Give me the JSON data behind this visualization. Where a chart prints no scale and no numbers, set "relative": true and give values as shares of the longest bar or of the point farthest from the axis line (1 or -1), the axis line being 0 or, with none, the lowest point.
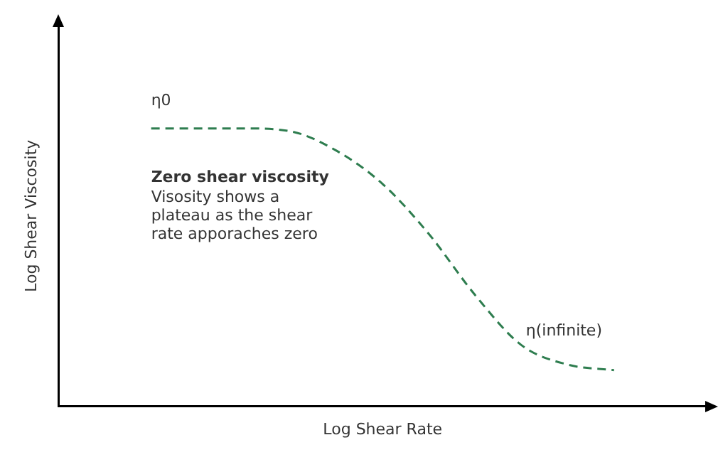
{
  "chart_data": {
    "type": "line",
    "relative": true,
    "xlabel": "Log Shear Rate",
    "ylabel": "Log Shear Viscosity",
    "categories": [
      null,
      null,
      null,
      null,
      null,
      null,
      null,
      null,
      null,
      null,
      null,
      null,
      null,
      null,
      null
    ],
    "series": [
      {
        "color": "#2e7d4f",
        "values": [
          null,
          null,
          1,
          1,
          1,
          0.99,
          0.92,
          0.8,
          0.62,
          0.4,
          0.22,
          0.15,
          0.13,
          null,
          null
        ]
      }
    ],
    "annotations": [
      "η0",
      "Zero shear viscosity",
      "Visosity shows a plateau as the shear rate apporaches zero",
      "η(infinite)"
    ],
    "line_style": "dashed",
    "marker": "none",
    "legend": false,
    "grid": false
  }
}
